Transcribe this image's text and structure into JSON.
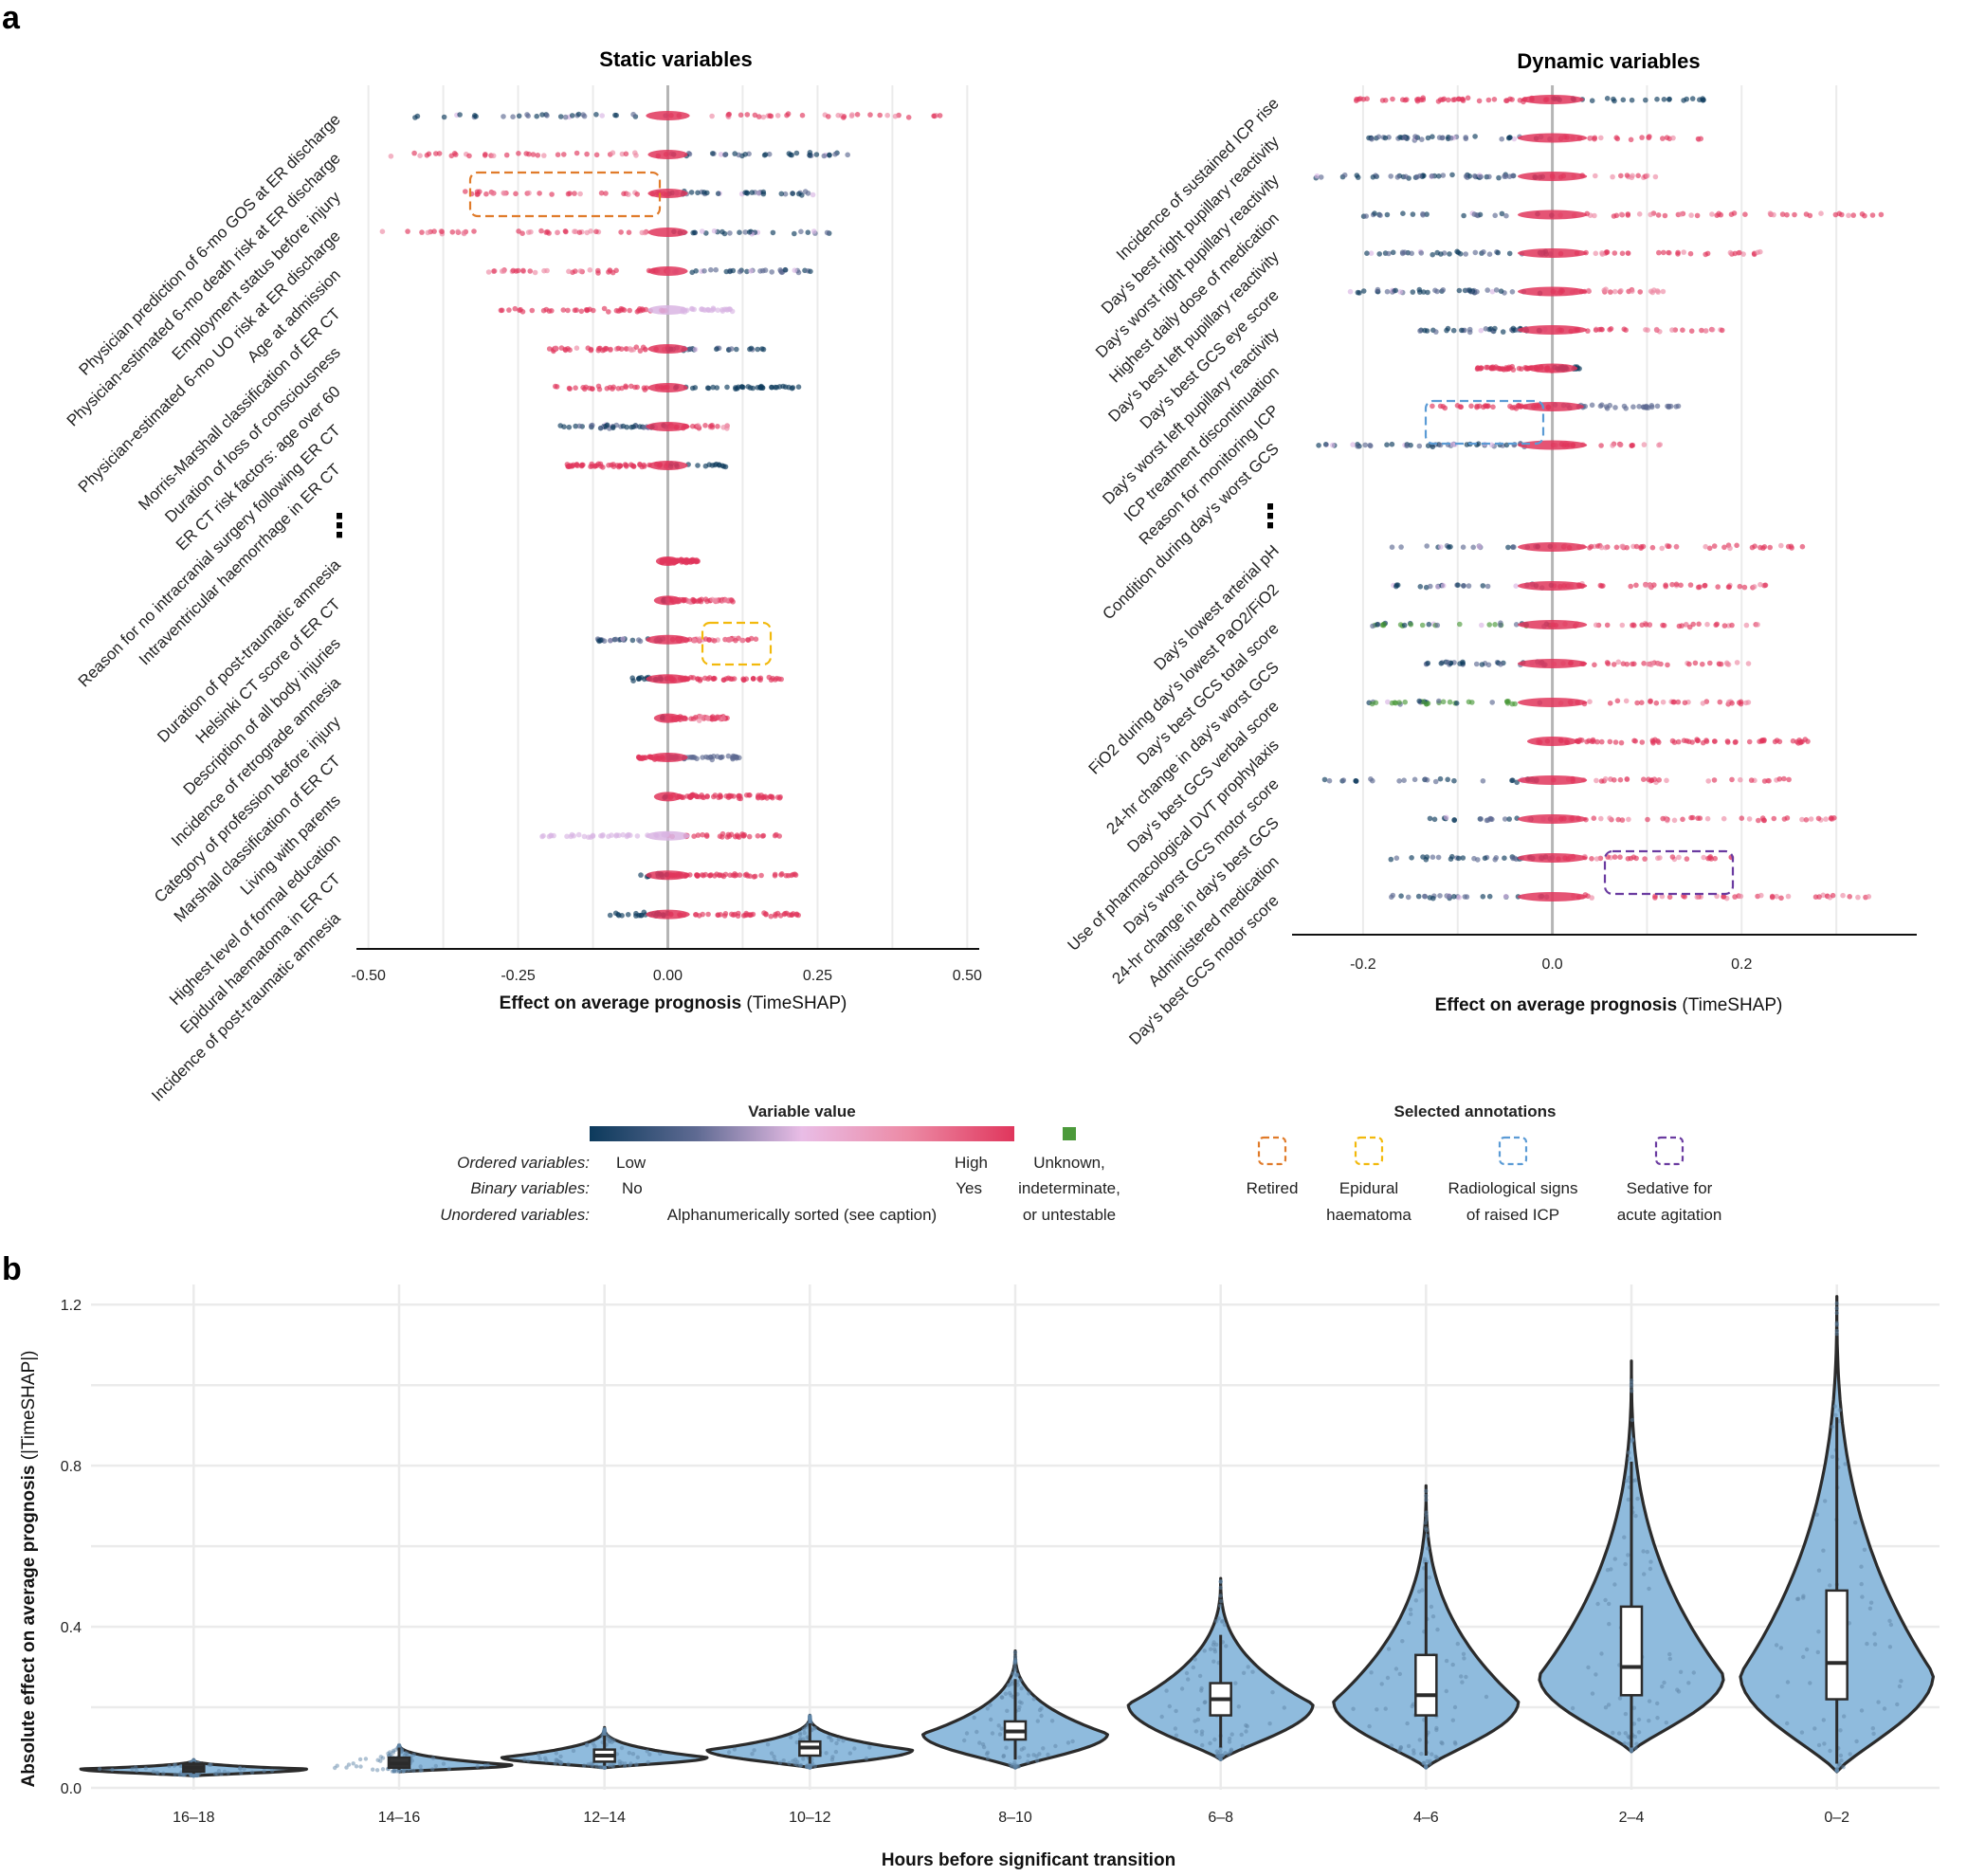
{
  "panels": {
    "a": {
      "letter": "a",
      "static": {
        "title": "Static variables",
        "top_features": [
          {
            "label": "Physician prediction of 6-mo GOS at ER discharge",
            "lo": -0.43,
            "hi": 0.47,
            "lowSide": "left",
            "mode": "spread"
          },
          {
            "label": "Physician-estimated 6-mo death risk at ER discharge",
            "lo": -0.47,
            "hi": 0.33,
            "lowSide": "right",
            "mode": "spread"
          },
          {
            "label": "Employment status before injury",
            "lo": -0.34,
            "hi": 0.26,
            "lowSide": "right",
            "mode": "spread"
          },
          {
            "label": "Physician-estimated 6-mo UO risk at ER discharge",
            "lo": -0.48,
            "hi": 0.27,
            "lowSide": "right",
            "mode": "spread"
          },
          {
            "label": "Age at admission",
            "lo": -0.3,
            "hi": 0.25,
            "lowSide": "right",
            "mode": "spread"
          },
          {
            "label": "Morris-Marshall classification of ER CT",
            "lo": -0.28,
            "hi": 0.11,
            "lowSide": "right",
            "mode": "lilac"
          },
          {
            "label": "Duration of loss of consciousness",
            "lo": -0.2,
            "hi": 0.16,
            "lowSide": "right",
            "mode": "spread"
          },
          {
            "label": "ER CT risk factors: age over 60",
            "lo": -0.21,
            "hi": 0.22,
            "lowSide": "right",
            "mode": "binary"
          },
          {
            "label": "Reason for no intracranial surgery following ER CT",
            "lo": -0.18,
            "hi": 0.1,
            "lowSide": "left",
            "mode": "spread"
          },
          {
            "label": "Intraventricular haemorrhage in ER CT",
            "lo": -0.18,
            "hi": 0.1,
            "lowSide": "right",
            "mode": "binary"
          }
        ],
        "bottom_features": [
          {
            "label": "Duration of post-traumatic amnesia",
            "lo": -0.01,
            "hi": 0.05,
            "lowSide": "left",
            "mode": "red"
          },
          {
            "label": "Helsinki CT score of ER CT",
            "lo": -0.01,
            "hi": 0.11,
            "lowSide": "left",
            "mode": "spread"
          },
          {
            "label": "Description of all body injuries",
            "lo": -0.12,
            "hi": 0.15,
            "lowSide": "left",
            "mode": "spread"
          },
          {
            "label": "Incidence of retrograde amnesia",
            "lo": -0.06,
            "hi": 0.19,
            "lowSide": "left",
            "mode": "binary"
          },
          {
            "label": "Category of profession before injury",
            "lo": -0.01,
            "hi": 0.1,
            "lowSide": "left",
            "mode": "spread"
          },
          {
            "label": "Marshall classification of ER CT",
            "lo": -0.05,
            "hi": 0.12,
            "lowSide": "right",
            "mode": "slate"
          },
          {
            "label": "Living with parents",
            "lo": -0.01,
            "hi": 0.19,
            "lowSide": "left",
            "mode": "binary"
          },
          {
            "label": "Highest level of formal education",
            "lo": -0.22,
            "hi": 0.19,
            "lowSide": "left",
            "mode": "lilac"
          },
          {
            "label": "Epidural haematoma in ER CT",
            "lo": -0.05,
            "hi": 0.23,
            "lowSide": "left",
            "mode": "binary"
          },
          {
            "label": "Incidence of post-traumatic amnesia",
            "lo": -0.1,
            "hi": 0.22,
            "lowSide": "left",
            "mode": "binary"
          }
        ],
        "x_ticks": [
          "-0.50",
          "-0.25",
          "0.00",
          "0.25",
          "0.50"
        ],
        "xlim": [
          -0.52,
          0.52
        ]
      },
      "dynamic": {
        "title": "Dynamic variables",
        "top_features": [
          {
            "label": "Incidence of sustained ICP rise",
            "lo": -0.22,
            "hi": 0.16,
            "lowSide": "right",
            "mode": "binary"
          },
          {
            "label": "Day's best right pupillary reactivity",
            "lo": -0.2,
            "hi": 0.16,
            "lowSide": "left",
            "mode": "spread"
          },
          {
            "label": "Day's worst right pupillary reactivity",
            "lo": -0.25,
            "hi": 0.11,
            "lowSide": "left",
            "mode": "spread"
          },
          {
            "label": "Highest daily dose of medication",
            "lo": -0.2,
            "hi": 0.35,
            "lowSide": "left",
            "mode": "spread"
          },
          {
            "label": "Day's best left pupillary reactivity",
            "lo": -0.2,
            "hi": 0.22,
            "lowSide": "left",
            "mode": "spread"
          },
          {
            "label": "Day's best GCS eye score",
            "lo": -0.22,
            "hi": 0.12,
            "lowSide": "left",
            "mode": "spread"
          },
          {
            "label": "Day's worst left pupillary reactivity",
            "lo": -0.14,
            "hi": 0.18,
            "lowSide": "left",
            "mode": "spread"
          },
          {
            "label": "ICP treatment discontinuation",
            "lo": -0.08,
            "hi": 0.03,
            "lowSide": "right",
            "mode": "binary"
          },
          {
            "label": "Reason for monitoring ICP",
            "lo": -0.13,
            "hi": 0.14,
            "lowSide": "right",
            "mode": "slate"
          },
          {
            "label": "Condition during day's worst GCS",
            "lo": -0.25,
            "hi": 0.12,
            "lowSide": "left",
            "mode": "spread"
          }
        ],
        "bottom_features": [
          {
            "label": "Day's lowest arterial pH",
            "lo": -0.17,
            "hi": 0.27,
            "lowSide": "left",
            "mode": "spread"
          },
          {
            "label": "FiO2 during day's lowest PaO2/FiO2",
            "lo": -0.17,
            "hi": 0.23,
            "lowSide": "left",
            "mode": "spread"
          },
          {
            "label": "Day's best GCS total score",
            "lo": -0.19,
            "hi": 0.22,
            "lowSide": "left",
            "mode": "green"
          },
          {
            "label": "24-hr change in day's worst GCS",
            "lo": -0.14,
            "hi": 0.21,
            "lowSide": "left",
            "mode": "spread"
          },
          {
            "label": "Day's best GCS verbal score",
            "lo": -0.2,
            "hi": 0.21,
            "lowSide": "left",
            "mode": "green"
          },
          {
            "label": "Use of pharmacological DVT prophylaxis",
            "lo": -0.02,
            "hi": 0.27,
            "lowSide": "left",
            "mode": "red"
          },
          {
            "label": "Day's worst GCS motor score",
            "lo": -0.25,
            "hi": 0.26,
            "lowSide": "left",
            "mode": "spread"
          },
          {
            "label": "24-hr change in day's best GCS",
            "lo": -0.13,
            "hi": 0.3,
            "lowSide": "left",
            "mode": "spread"
          },
          {
            "label": "Administered medication",
            "lo": -0.18,
            "hi": 0.2,
            "lowSide": "left",
            "mode": "spread"
          },
          {
            "label": "Day's best GCS motor score",
            "lo": -0.17,
            "hi": 0.34,
            "lowSide": "left",
            "mode": "spread"
          }
        ],
        "x_ticks": [
          "-0.2",
          "0.0",
          "0.2"
        ],
        "xlim": [
          -0.275,
          0.385
        ]
      },
      "ellipsis": "⋮",
      "x_axis_label_bold": "Effect on average prognosis",
      "x_axis_label_rest": " (TimeSHAP)",
      "legend": {
        "value_title": "Variable value",
        "ordered_label": "Ordered variables:",
        "ordered_low": "Low",
        "ordered_high": "High",
        "binary_label": "Binary variables:",
        "binary_low": "No",
        "binary_high": "Yes",
        "unordered_label": "Unordered variables:",
        "unordered_text": "Alphanumerically sorted (see caption)",
        "unknown_lines": [
          "Unknown,",
          "indeterminate,",
          "or untestable"
        ],
        "annot_title": "Selected annotations",
        "annotations": [
          {
            "lines": [
              "Retired"
            ],
            "color": "#E07B2A"
          },
          {
            "lines": [
              "Epidural",
              "haematoma"
            ],
            "color": "#F2B90C"
          },
          {
            "lines": [
              "Radiological signs",
              "of raised ICP"
            ],
            "color": "#5B9BD5"
          },
          {
            "lines": [
              "Sedative for",
              "acute agitation"
            ],
            "color": "#6A3BA0"
          }
        ]
      }
    },
    "b": {
      "letter": "b",
      "x_axis_label": "Hours before significant transition",
      "y_axis_label_bold": "Absolute effect on average prognosis",
      "y_axis_label_rest": " (|TimeSHAP|)"
    }
  },
  "chart_data": [
    {
      "type": "scatter",
      "title": "Static variables",
      "xlabel": "Effect on average prognosis (TimeSHAP)",
      "ylabel": "",
      "xlim": [
        -0.52,
        0.52
      ],
      "note": "Beeswarm of TimeSHAP values per variable; extents read from panel a (left)."
    },
    {
      "type": "scatter",
      "title": "Dynamic variables",
      "xlabel": "Effect on average prognosis (TimeSHAP)",
      "ylabel": "",
      "xlim": [
        -0.275,
        0.385
      ],
      "note": "Beeswarm of TimeSHAP values per variable; extents read from panel a (right)."
    },
    {
      "type": "violin",
      "title": "",
      "xlabel": "Hours before significant transition",
      "ylabel": "Absolute effect on average prognosis (|TimeSHAP|)",
      "ylim": [
        0,
        1.25
      ],
      "y_ticks": [
        "0.0",
        "0.4",
        "0.8",
        "1.2"
      ],
      "categories": [
        "16–18",
        "14–16",
        "12–14",
        "10–12",
        "8–10",
        "6–8",
        "4–6",
        "2–4",
        "0–2"
      ],
      "violins": [
        {
          "min": 0.03,
          "max": 0.07,
          "q1": 0.04,
          "median": 0.05,
          "q3": 0.06,
          "wlo": 0.035,
          "whi": 0.065,
          "halfwidth": 0.55
        },
        {
          "min": 0.04,
          "max": 0.11,
          "q1": 0.05,
          "median": 0.06,
          "q3": 0.075,
          "wlo": 0.045,
          "whi": 0.1,
          "halfwidth": 0.55
        },
        {
          "min": 0.05,
          "max": 0.15,
          "q1": 0.065,
          "median": 0.08,
          "q3": 0.095,
          "wlo": 0.055,
          "whi": 0.13,
          "halfwidth": 0.5
        },
        {
          "min": 0.05,
          "max": 0.18,
          "q1": 0.08,
          "median": 0.1,
          "q3": 0.115,
          "wlo": 0.06,
          "whi": 0.16,
          "halfwidth": 0.5
        },
        {
          "min": 0.05,
          "max": 0.34,
          "q1": 0.12,
          "median": 0.14,
          "q3": 0.165,
          "wlo": 0.07,
          "whi": 0.27,
          "halfwidth": 0.45
        },
        {
          "min": 0.07,
          "max": 0.52,
          "q1": 0.18,
          "median": 0.22,
          "q3": 0.26,
          "wlo": 0.1,
          "whi": 0.38,
          "halfwidth": 0.45
        },
        {
          "min": 0.05,
          "max": 0.75,
          "q1": 0.18,
          "median": 0.23,
          "q3": 0.33,
          "wlo": 0.08,
          "whi": 0.56,
          "halfwidth": 0.45
        },
        {
          "min": 0.09,
          "max": 1.06,
          "q1": 0.23,
          "median": 0.3,
          "q3": 0.45,
          "wlo": 0.1,
          "whi": 0.81,
          "halfwidth": 0.45
        },
        {
          "min": 0.04,
          "max": 1.22,
          "q1": 0.22,
          "median": 0.31,
          "q3": 0.49,
          "wlo": 0.06,
          "whi": 0.92,
          "halfwidth": 0.47
        }
      ]
    }
  ]
}
